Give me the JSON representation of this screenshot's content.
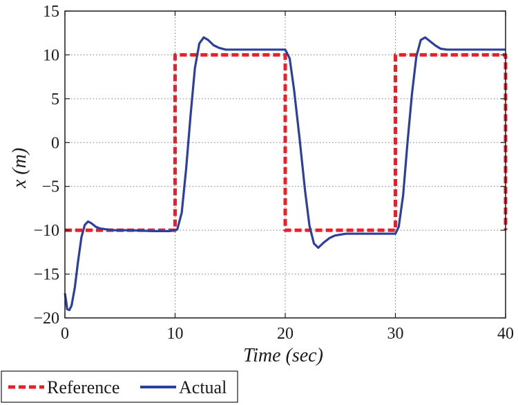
{
  "chart_data": {
    "type": "line",
    "title": "",
    "xlabel": "Time (sec)",
    "ylabel": "x (m)",
    "xlim": [
      0,
      40
    ],
    "ylim": [
      -20,
      15
    ],
    "xticks": [
      0,
      10,
      20,
      30,
      40
    ],
    "yticks": [
      -20,
      -15,
      -10,
      -5,
      0,
      5,
      10,
      15
    ],
    "xtick_labels": [
      "0",
      "10",
      "20",
      "30",
      "40"
    ],
    "ytick_labels": [
      "−20",
      "−15",
      "−10",
      "−5",
      "0",
      "5",
      "10",
      "15"
    ],
    "grid": true,
    "legend_position": "bottom-left-outside",
    "series": [
      {
        "name": "Reference",
        "style": "dashed",
        "color": "#e8202a",
        "x": [
          0,
          10,
          10,
          20,
          20,
          30,
          30,
          40,
          40
        ],
        "y": [
          -10,
          -10,
          10,
          10,
          -10,
          -10,
          10,
          10,
          -10
        ]
      },
      {
        "name": "Actual",
        "style": "solid",
        "color": "#2a3f9e",
        "x": [
          0,
          0.1,
          0.2,
          0.4,
          0.6,
          0.9,
          1.2,
          1.5,
          1.8,
          2.1,
          2.4,
          2.8,
          3.2,
          3.8,
          4.5,
          6,
          8,
          9.5,
          10.2,
          10.6,
          11,
          11.4,
          11.8,
          12.2,
          12.6,
          13,
          13.5,
          14,
          14.6,
          15.5,
          17,
          19,
          20,
          20.4,
          20.8,
          21.3,
          21.8,
          22.2,
          22.6,
          23,
          23.5,
          24,
          24.5,
          25.5,
          27,
          30,
          30.3,
          30.7,
          31.1,
          31.5,
          31.9,
          32.3,
          32.7,
          33.1,
          33.6,
          34.1,
          34.7,
          35.5,
          37,
          40
        ],
        "y": [
          -17.2,
          -18,
          -19,
          -19.1,
          -18.6,
          -16.5,
          -13.5,
          -10.8,
          -9.4,
          -9,
          -9.2,
          -9.6,
          -9.8,
          -9.9,
          -10,
          -10,
          -10.1,
          -10.1,
          -9.9,
          -8,
          -3,
          3,
          8.5,
          11.3,
          12,
          11.7,
          11.1,
          10.8,
          10.6,
          10.6,
          10.6,
          10.6,
          10.6,
          9.6,
          6,
          0.5,
          -5.5,
          -9.5,
          -11.5,
          -12,
          -11.4,
          -10.9,
          -10.6,
          -10.4,
          -10.4,
          -10.4,
          -9.6,
          -6,
          0,
          5.5,
          9.8,
          11.7,
          12,
          11.6,
          11.1,
          10.7,
          10.6,
          10.6,
          10.6,
          10.6
        ]
      }
    ]
  },
  "legend": {
    "items": [
      {
        "label": "Reference",
        "color": "#e8202a",
        "style": "dashed"
      },
      {
        "label": "Actual",
        "color": "#2a3f9e",
        "style": "solid"
      }
    ]
  },
  "colors": {
    "reference": "#e8202a",
    "actual": "#2a3f9e",
    "grid": "#7a7a7a",
    "axis": "#1a1a1a"
  }
}
